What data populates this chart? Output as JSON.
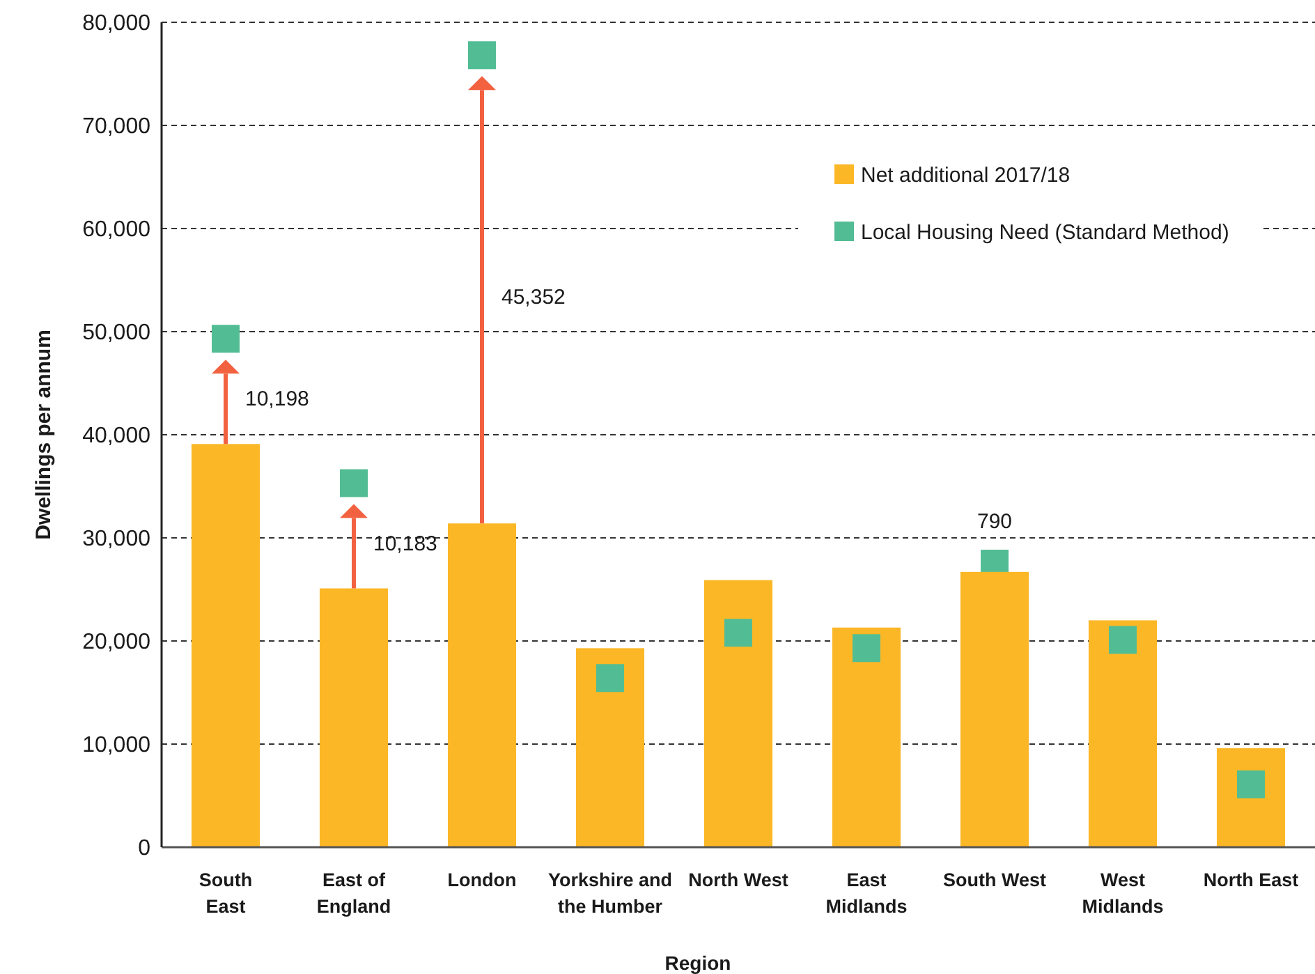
{
  "chart_data": {
    "type": "bar",
    "xlabel": "Region",
    "ylabel": "Dwellings per annum",
    "categories": [
      "South\nEast",
      "East of\nEngland",
      "London",
      "Yorkshire and\nthe Humber",
      "North West",
      "East\nMidlands",
      "South West",
      "West\nMidlands",
      "North East"
    ],
    "series": [
      {
        "name": "Net additional 2017/18",
        "color": "#fbb726",
        "values": [
          39100,
          25100,
          31400,
          19300,
          25900,
          21300,
          26700,
          22000,
          9600
        ]
      },
      {
        "name": "Local Housing Need (Standard Method)",
        "color": "#52bd94",
        "type": "scatter",
        "marker": "square",
        "x": [
          "South\nEast",
          "East of\nEngland",
          "London",
          "Yorkshire and\nthe Humber",
          "North West",
          "East\nMidlands",
          "South West",
          "West\nMidlands",
          "North East"
        ],
        "values": [
          49300,
          35300,
          76800,
          16400,
          20800,
          19300,
          27500,
          20100,
          6100
        ]
      }
    ],
    "ylim": [
      0,
      80000
    ],
    "yticks": [
      0,
      {
        "value": 10000,
        "label": "10,000"
      },
      {
        "value": 20000,
        "label": "20,000"
      },
      {
        "value": 30000,
        "label": "30,000"
      },
      {
        "value": 40000,
        "label": "40,000"
      },
      {
        "value": 50000,
        "label": "50,000"
      },
      {
        "value": 60000,
        "label": "60,000"
      },
      {
        "value": 70000,
        "label": "70,000"
      },
      {
        "value": 80000,
        "label": "80,000"
      }
    ],
    "grid": "y",
    "legend": "top right",
    "annotations": [
      {
        "text": "10,198",
        "x": "South\nEast",
        "y": 49300
      },
      {
        "text": "10,183",
        "x": "East of\nEngland",
        "y": 35300
      },
      "45,352",
      {
        "text": "790",
        "x": "South West",
        "y": 27500
      }
    ]
  }
}
